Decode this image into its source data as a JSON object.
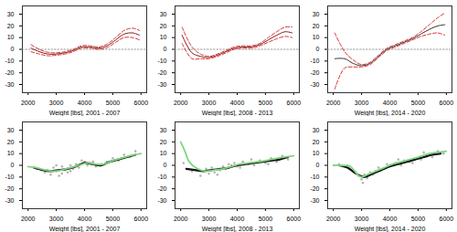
{
  "chart_data": [
    {
      "type": "line",
      "xlabel": "Weight [lbs], 2001 - 2007",
      "xlim": [
        1800,
        6200
      ],
      "xticks": [
        2000,
        3000,
        4000,
        5000,
        6000
      ],
      "ylim": [
        -37,
        37
      ],
      "yticks": [
        -30,
        -20,
        -10,
        0,
        10,
        20,
        30
      ],
      "x": [
        2100,
        2400,
        2700,
        3000,
        3300,
        3600,
        3900,
        4200,
        4500,
        4800,
        5100,
        5400,
        5700,
        5950
      ],
      "series": [
        {
          "color": "#999999",
          "line_style": "dotted",
          "x": [
            1800,
            6200
          ],
          "values": [
            0,
            0
          ]
        },
        {
          "color": "#e03030",
          "line_style": "dashed",
          "values": [
            4,
            0,
            -2.5,
            -3,
            -2,
            0,
            3,
            3,
            2,
            4.5,
            10,
            16,
            18,
            16
          ]
        },
        {
          "color": "#7a2020",
          "line_style": "solid",
          "values": [
            1,
            -2,
            -4,
            -4,
            -3,
            -1,
            2,
            2,
            1,
            3,
            8,
            13,
            14,
            12
          ]
        },
        {
          "color": "#e03030",
          "line_style": "dashed",
          "values": [
            -2,
            -4,
            -5.5,
            -5,
            -4,
            -2,
            1,
            1,
            0,
            1.5,
            6,
            10,
            10,
            8
          ]
        }
      ]
    },
    {
      "type": "line",
      "xlabel": "Weight [lbs], 2008 - 2013",
      "xlim": [
        1800,
        6200
      ],
      "xticks": [
        2000,
        3000,
        4000,
        5000,
        6000
      ],
      "ylim": [
        -37,
        37
      ],
      "yticks": [
        -30,
        -20,
        -10,
        0,
        10,
        20,
        30
      ],
      "x": [
        2050,
        2400,
        2700,
        3000,
        3300,
        3600,
        3900,
        4200,
        4500,
        4800,
        5100,
        5400,
        5700,
        5950
      ],
      "series": [
        {
          "color": "#999999",
          "line_style": "dotted",
          "x": [
            1800,
            6200
          ],
          "values": [
            0,
            0
          ]
        },
        {
          "color": "#e03030",
          "line_style": "dashed",
          "values": [
            19,
            2,
            -4,
            -6,
            -4,
            -1,
            2,
            3,
            3,
            5,
            10,
            15,
            19,
            19
          ]
        },
        {
          "color": "#7a2020",
          "line_style": "solid",
          "values": [
            12,
            -3,
            -6,
            -7,
            -5,
            -2,
            1,
            2,
            2,
            4,
            8,
            12,
            15,
            14
          ]
        },
        {
          "color": "#e03030",
          "line_style": "dashed",
          "values": [
            5,
            -8,
            -8,
            -8,
            -6,
            -3,
            0,
            1,
            1,
            3,
            6,
            9,
            11,
            10
          ]
        }
      ]
    },
    {
      "type": "line",
      "xlabel": "Weight [lbs], 2014 - 2020",
      "xlim": [
        1800,
        6200
      ],
      "xticks": [
        2000,
        3000,
        4000,
        5000,
        6000
      ],
      "ylim": [
        -37,
        37
      ],
      "yticks": [
        -30,
        -20,
        -10,
        0,
        10,
        20,
        30
      ],
      "x": [
        2050,
        2400,
        2700,
        3000,
        3300,
        3600,
        3900,
        4200,
        4500,
        4800,
        5100,
        5400,
        5700,
        5950
      ],
      "series": [
        {
          "color": "#999999",
          "line_style": "dotted",
          "x": [
            1800,
            6200
          ],
          "values": [
            0,
            0
          ]
        },
        {
          "color": "#e03030",
          "line_style": "dashed",
          "values": [
            14,
            -2,
            -9,
            -13,
            -11,
            -5,
            1,
            4,
            7,
            10,
            15,
            21,
            27,
            31
          ]
        },
        {
          "color": "#333333",
          "line_style": "solid",
          "values": [
            -8,
            -8,
            -12,
            -14,
            -12,
            -6,
            0,
            3,
            6,
            9,
            13,
            17,
            20,
            21
          ]
        },
        {
          "color": "#e03030",
          "line_style": "dashed",
          "values": [
            -34,
            -16,
            -15,
            -15,
            -13,
            -7,
            -1,
            2,
            5,
            8,
            11,
            13,
            14,
            12
          ]
        }
      ]
    },
    {
      "type": "line",
      "xlabel": "Weight [lbs], 2001 - 2007",
      "xlim": [
        1800,
        6200
      ],
      "xticks": [
        2000,
        3000,
        4000,
        5000,
        6000
      ],
      "ylim": [
        -37,
        37
      ],
      "yticks": [
        -30,
        -20,
        -10,
        0,
        10,
        20,
        30
      ],
      "series": [
        {
          "type": "scatter",
          "color": "#555555",
          "x": [
            2300,
            2600,
            2800,
            2900,
            3000,
            3100,
            3200,
            3300,
            3400,
            3500,
            3600,
            3700,
            3800,
            3900,
            4000,
            4100,
            4200,
            4400,
            4600,
            4800,
            5000,
            5200,
            5400,
            5600,
            5800,
            3000,
            3200,
            3500,
            2700,
            4300
          ],
          "values": [
            -3,
            -6,
            -8,
            -2,
            -5,
            -9,
            -1,
            -4,
            -6,
            0,
            -3,
            1,
            -2,
            4,
            3,
            0,
            2,
            -1,
            1,
            3,
            6,
            4,
            9,
            7,
            12,
            0,
            -7,
            -5,
            -4,
            3
          ]
        },
        {
          "type": "line",
          "color": "#111111",
          "line_style": "solid",
          "x": [
            2200,
            2500,
            2800,
            3100,
            3400,
            3700,
            4000,
            4300,
            4600,
            4900,
            5200,
            5500,
            5800
          ],
          "values": [
            -2,
            -4,
            -5,
            -4,
            -3,
            -1,
            2,
            1,
            0,
            3,
            5,
            7,
            9
          ]
        },
        {
          "type": "line",
          "color": "#7fd67f",
          "line_style": "solid",
          "x": [
            2000,
            2300,
            2600,
            2900,
            3200,
            3500,
            3800,
            4100,
            4400,
            4700,
            5000,
            5300,
            5600,
            6000
          ],
          "values": [
            -1,
            -2,
            -4,
            -5,
            -4,
            -2,
            0,
            2,
            1,
            1,
            4,
            6,
            8,
            10
          ]
        }
      ]
    },
    {
      "type": "line",
      "xlabel": "Weight [lbs], 2008 - 2013",
      "xlim": [
        1800,
        6200
      ],
      "xticks": [
        2000,
        3000,
        4000,
        5000,
        6000
      ],
      "ylim": [
        -37,
        37
      ],
      "yticks": [
        -30,
        -20,
        -10,
        0,
        10,
        20,
        30
      ],
      "series": [
        {
          "type": "scatter",
          "color": "#555555",
          "x": [
            2100,
            2400,
            2700,
            2900,
            3000,
            3100,
            3200,
            3400,
            3500,
            3600,
            3800,
            3900,
            4000,
            4200,
            4400,
            4600,
            4800,
            5000,
            5200,
            5400,
            5600,
            5800,
            3300,
            3700,
            4100,
            2600,
            4500,
            5100
          ],
          "values": [
            2,
            -5,
            -9,
            -3,
            -7,
            -2,
            -6,
            -4,
            -1,
            -3,
            0,
            2,
            -1,
            3,
            1,
            0,
            4,
            2,
            6,
            3,
            8,
            5,
            -8,
            1,
            -2,
            -4,
            5,
            1
          ]
        },
        {
          "type": "line",
          "color": "#111111",
          "line_style": "solid",
          "x": [
            2200,
            2500,
            2800,
            3100,
            3400,
            3700,
            4000,
            4300,
            4600,
            4900,
            5200,
            5500,
            5800
          ],
          "values": [
            -3,
            -4,
            -5,
            -4,
            -3,
            -2,
            0,
            1,
            2,
            3,
            4,
            5,
            7
          ]
        },
        {
          "type": "line",
          "color": "#7fd67f",
          "line_style": "solid",
          "x": [
            2000,
            2150,
            2300,
            2600,
            2900,
            3200,
            3500,
            3800,
            4100,
            4400,
            4700,
            5000,
            5400,
            6000
          ],
          "values": [
            20,
            12,
            3,
            -3,
            -5,
            -4,
            -3,
            -1,
            1,
            2,
            3,
            4,
            6,
            8
          ]
        }
      ]
    },
    {
      "type": "line",
      "xlabel": "Weight [lbs], 2014 - 2020",
      "xlim": [
        1800,
        6200
      ],
      "xticks": [
        2000,
        3000,
        4000,
        5000,
        6000
      ],
      "ylim": [
        -37,
        37
      ],
      "yticks": [
        -30,
        -20,
        -10,
        0,
        10,
        20,
        30
      ],
      "series": [
        {
          "type": "scatter",
          "color": "#555555",
          "x": [
            2200,
            2500,
            2800,
            2900,
            3000,
            3100,
            3200,
            3300,
            3500,
            3600,
            3800,
            4000,
            4200,
            4400,
            4500,
            4700,
            4900,
            5100,
            5300,
            5500,
            5700,
            5900,
            3050,
            3400,
            3900,
            4300,
            4800,
            5200
          ],
          "values": [
            1,
            0,
            -6,
            -9,
            -12,
            -8,
            -11,
            -6,
            -5,
            -2,
            -3,
            0,
            2,
            0,
            4,
            3,
            6,
            5,
            9,
            7,
            12,
            10,
            -15,
            -8,
            1,
            5,
            2,
            11
          ]
        },
        {
          "type": "line",
          "color": "#111111",
          "line_style": "solid",
          "x": [
            2200,
            2500,
            2800,
            3100,
            3400,
            3700,
            4000,
            4300,
            4600,
            4900,
            5200,
            5500,
            5800
          ],
          "values": [
            0,
            -2,
            -7,
            -10,
            -7,
            -4,
            -1,
            1,
            3,
            5,
            7,
            9,
            10
          ]
        },
        {
          "type": "line",
          "color": "#7fd67f",
          "line_style": "solid",
          "x": [
            2000,
            2300,
            2600,
            2900,
            3000,
            3200,
            3500,
            3800,
            4100,
            4400,
            4700,
            5000,
            5400,
            6000
          ],
          "values": [
            0,
            0,
            -1,
            -9,
            -10,
            -8,
            -5,
            -2,
            1,
            3,
            5,
            7,
            10,
            12
          ]
        }
      ]
    }
  ]
}
